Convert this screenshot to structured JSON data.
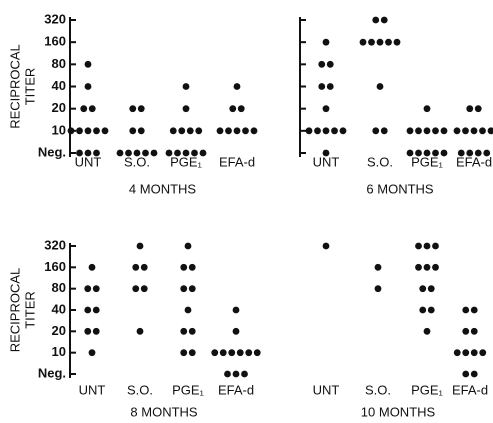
{
  "chart_data": [
    {
      "type": "strip",
      "xlabel": "4 MONTHS",
      "ylabel": [
        "RECIPROCAL",
        "TITER"
      ],
      "yscale": "log",
      "yaxis_line": true,
      "ytick_labels": true,
      "color": "#111111",
      "ylim": [
        5,
        320
      ],
      "yticks": [
        {
          "value": 5,
          "label": "Neg."
        },
        10,
        20,
        40,
        80,
        160,
        320
      ],
      "categories": [
        "UNT",
        "S.O.",
        "PGE₁",
        "EFA-d"
      ],
      "values": [
        [
          80,
          40,
          20,
          20,
          10,
          10,
          10,
          10,
          10,
          5,
          5,
          5
        ],
        [
          20,
          20,
          10,
          10,
          5,
          5,
          5,
          5,
          5
        ],
        [
          40,
          20,
          10,
          10,
          10,
          10,
          5,
          5,
          5,
          5,
          5
        ],
        [
          40,
          20,
          20,
          10,
          10,
          10,
          10,
          10
        ]
      ]
    },
    {
      "type": "strip",
      "xlabel": "6 MONTHS",
      "yscale": "log",
      "yaxis_line": true,
      "ytick_labels": false,
      "color": "#111111",
      "ylim": [
        5,
        320
      ],
      "yticks": [
        {
          "value": 5,
          "label": "Neg."
        },
        10,
        20,
        40,
        80,
        160,
        320
      ],
      "categories": [
        "UNT",
        "S.O.",
        "PGE₁",
        "EFA-d"
      ],
      "values": [
        [
          160,
          80,
          80,
          40,
          40,
          20,
          10,
          10,
          10,
          10,
          10,
          5
        ],
        [
          320,
          320,
          160,
          160,
          160,
          160,
          160,
          40,
          10,
          10
        ],
        [
          20,
          10,
          10,
          10,
          10,
          10,
          5,
          5,
          5,
          5,
          5
        ],
        [
          20,
          20,
          10,
          10,
          10,
          10,
          10,
          5,
          5,
          5,
          5
        ]
      ]
    },
    {
      "type": "strip",
      "xlabel": "8 MONTHS",
      "ylabel": [
        "RECIPROCAL",
        "TITER"
      ],
      "yscale": "log",
      "yaxis_line": true,
      "ytick_labels": true,
      "color": "#111111",
      "ylim": [
        5,
        320
      ],
      "yticks": [
        {
          "value": 5,
          "label": "Neg."
        },
        10,
        20,
        40,
        80,
        160,
        320
      ],
      "categories": [
        "UNT",
        "S.O.",
        "PGE₁",
        "EFA-d"
      ],
      "values": [
        [
          160,
          80,
          80,
          40,
          40,
          20,
          20,
          10
        ],
        [
          320,
          160,
          160,
          80,
          80,
          20
        ],
        [
          320,
          160,
          160,
          80,
          80,
          40,
          20,
          20,
          10,
          10
        ],
        [
          40,
          20,
          10,
          10,
          10,
          10,
          10,
          10,
          5,
          5,
          5
        ]
      ]
    },
    {
      "type": "strip",
      "xlabel": "10 MONTHS",
      "yscale": "log",
      "yaxis_line": false,
      "ytick_labels": false,
      "color": "#111111",
      "ylim": [
        5,
        320
      ],
      "yticks": [
        {
          "value": 5,
          "label": "Neg."
        },
        10,
        20,
        40,
        80,
        160,
        320
      ],
      "categories": [
        "UNT",
        "S.O.",
        "PGE₁",
        "EFA-d"
      ],
      "values": [
        [
          320
        ],
        [
          160,
          80
        ],
        [
          320,
          320,
          320,
          160,
          160,
          160,
          80,
          80,
          40,
          40,
          20
        ],
        [
          40,
          40,
          20,
          20,
          10,
          10,
          10,
          10,
          5,
          5
        ]
      ]
    }
  ]
}
